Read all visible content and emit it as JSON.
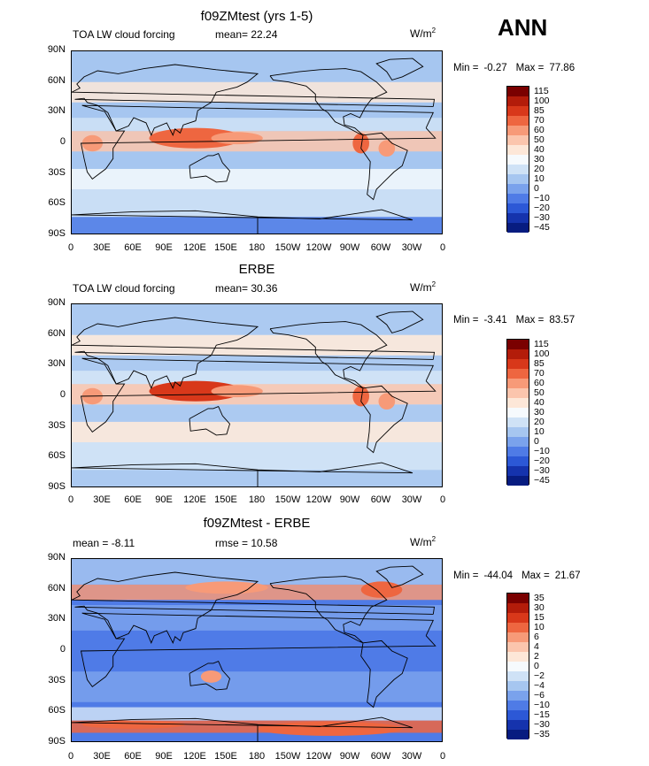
{
  "header": {
    "season": "ANN"
  },
  "panels": [
    {
      "title": "f09ZMtest (yrs 1-5)",
      "left_label": "TOA LW cloud forcing",
      "center_label": "mean=  22.24",
      "units": "W/m",
      "units_sup": "2",
      "min_label": "Min =",
      "min_value": "-0.27",
      "max_label": "Max =",
      "max_value": "77.86",
      "colorbar_labels": [
        "115",
        "100",
        "85",
        "70",
        "60",
        "50",
        "40",
        "30",
        "20",
        "10",
        "0",
        "−10",
        "−20",
        "−30",
        "−45"
      ],
      "colors": [
        "#7a0000",
        "#b31c0a",
        "#d8381a",
        "#ee6640",
        "#f79a78",
        "#fbc5ad",
        "#fde7d8",
        "#f6fafd",
        "#cfe2f6",
        "#a6c6f0",
        "#7aa2ec",
        "#4f7be6",
        "#2c58d6",
        "#1533ad",
        "#071c80"
      ],
      "bg_color": "#a6c6f0"
    },
    {
      "title": "ERBE",
      "left_label": "TOA LW cloud forcing",
      "center_label": "mean=  30.36",
      "units": "W/m",
      "units_sup": "2",
      "min_label": "Min =",
      "min_value": "-3.41",
      "max_label": "Max =",
      "max_value": "83.57",
      "colorbar_labels": [
        "115",
        "100",
        "85",
        "70",
        "60",
        "50",
        "40",
        "30",
        "20",
        "10",
        "0",
        "−10",
        "−20",
        "−30",
        "−45"
      ],
      "colors": [
        "#7a0000",
        "#b31c0a",
        "#d8381a",
        "#ee6640",
        "#f79a78",
        "#fbc5ad",
        "#fde7d8",
        "#f6fafd",
        "#cfe2f6",
        "#a6c6f0",
        "#7aa2ec",
        "#4f7be6",
        "#2c58d6",
        "#1533ad",
        "#071c80"
      ],
      "bg_color": "#cfe2f6"
    },
    {
      "title": "f09ZMtest - ERBE",
      "left_label": "mean =  -8.11",
      "center_label": "rmse =  10.58",
      "units": "W/m",
      "units_sup": "2",
      "min_label": "Min =",
      "min_value": "-44.04",
      "max_label": "Max =",
      "max_value": "21.67",
      "colorbar_labels": [
        "35",
        "30",
        "15",
        "10",
        "6",
        "4",
        "2",
        "0",
        "−2",
        "−4",
        "−6",
        "−10",
        "−15",
        "−30",
        "−35"
      ],
      "colors": [
        "#7a0000",
        "#b31c0a",
        "#d8381a",
        "#ee6640",
        "#f79a78",
        "#fbc5ad",
        "#fde7d8",
        "#f6fafd",
        "#cfe2f6",
        "#a6c6f0",
        "#7aa2ec",
        "#4f7be6",
        "#2c58d6",
        "#1533ad",
        "#071c80"
      ],
      "bg_color": "#4f7be6"
    }
  ],
  "lat_labels": [
    "90N",
    "60N",
    "30N",
    "0",
    "30S",
    "60S",
    "90S"
  ],
  "lon_labels": [
    "0",
    "30E",
    "60E",
    "90E",
    "120E",
    "150E",
    "180",
    "150W",
    "120W",
    "90W",
    "60W",
    "30W",
    "0"
  ]
}
